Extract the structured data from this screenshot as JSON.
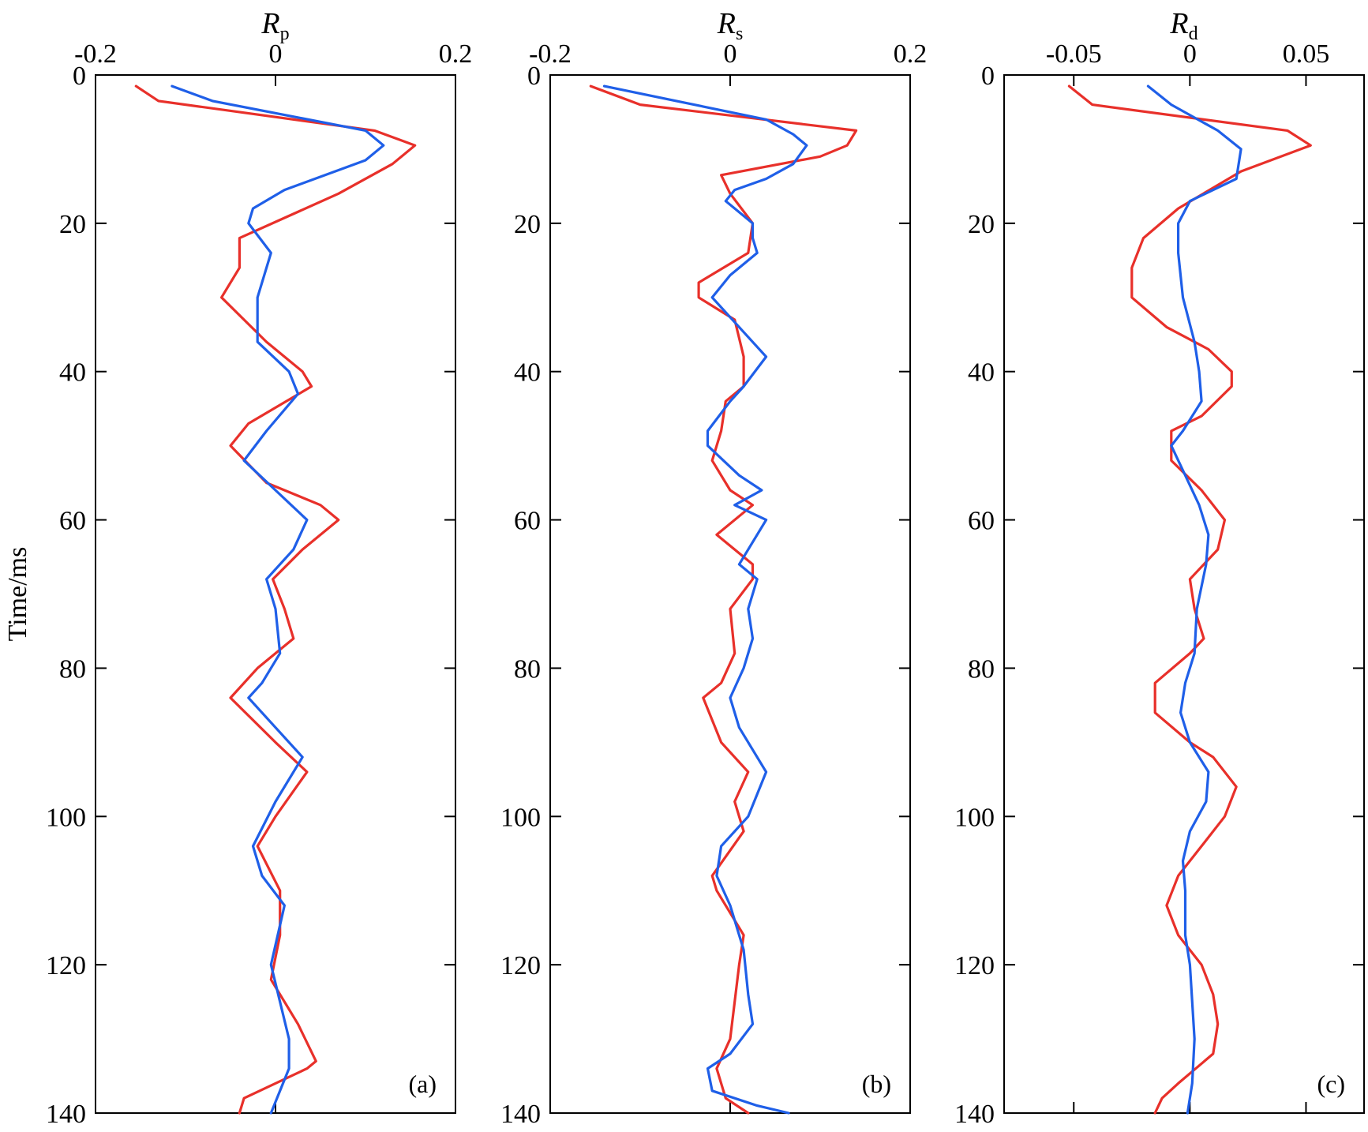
{
  "chart_data": [
    {
      "type": "line",
      "panel_label": "(a)",
      "title_main": "R",
      "title_sub": "p",
      "ylabel": "Time/ms",
      "xlim": [
        -0.2,
        0.2
      ],
      "x_ticks": [
        -0.2,
        0,
        0.2
      ],
      "x_tick_labels": [
        "-0.2",
        "0",
        "0.2"
      ],
      "ylim": [
        0,
        140
      ],
      "y_ticks": [
        0,
        20,
        40,
        60,
        80,
        100,
        120,
        140
      ],
      "y_tick_labels": [
        "0",
        "20",
        "40",
        "60",
        "80",
        "100",
        "120",
        "140"
      ],
      "series": [
        {
          "color": "#e8302a",
          "points": [
            [
              -0.155,
              1.5
            ],
            [
              -0.13,
              3.5
            ],
            [
              0.11,
              7.5
            ],
            [
              0.155,
              9.5
            ],
            [
              0.13,
              12
            ],
            [
              0.07,
              16
            ],
            [
              -0.04,
              22
            ],
            [
              -0.04,
              26
            ],
            [
              -0.06,
              30
            ],
            [
              -0.01,
              36
            ],
            [
              0.03,
              40
            ],
            [
              0.04,
              42
            ],
            [
              -0.03,
              47
            ],
            [
              -0.05,
              50
            ],
            [
              -0.01,
              55
            ],
            [
              0.05,
              58
            ],
            [
              0.07,
              60
            ],
            [
              0.03,
              64
            ],
            [
              -0.003,
              68
            ],
            [
              0.01,
              72
            ],
            [
              0.02,
              76
            ],
            [
              -0.02,
              80
            ],
            [
              -0.05,
              84
            ],
            [
              0.0,
              90
            ],
            [
              0.035,
              94
            ],
            [
              0.0,
              100
            ],
            [
              -0.02,
              104
            ],
            [
              0.005,
              110
            ],
            [
              0.005,
              116
            ],
            [
              -0.005,
              122
            ],
            [
              0.025,
              128
            ],
            [
              0.045,
              133
            ],
            [
              0.035,
              134
            ],
            [
              -0.035,
              138
            ],
            [
              -0.04,
              140
            ]
          ]
        },
        {
          "color": "#1f5fe8",
          "points": [
            [
              -0.115,
              1.5
            ],
            [
              -0.07,
              3.5
            ],
            [
              0.1,
              7.5
            ],
            [
              0.12,
              9.5
            ],
            [
              0.1,
              11.5
            ],
            [
              0.01,
              15.5
            ],
            [
              -0.025,
              18
            ],
            [
              -0.03,
              20
            ],
            [
              -0.005,
              24
            ],
            [
              -0.02,
              30
            ],
            [
              -0.02,
              36
            ],
            [
              0.015,
              40
            ],
            [
              0.025,
              43
            ],
            [
              -0.01,
              48
            ],
            [
              -0.035,
              52
            ],
            [
              0.0,
              56
            ],
            [
              0.035,
              60
            ],
            [
              0.02,
              64
            ],
            [
              -0.01,
              68
            ],
            [
              0.0,
              72
            ],
            [
              0.005,
              78
            ],
            [
              -0.015,
              82
            ],
            [
              -0.03,
              84
            ],
            [
              0.0,
              88
            ],
            [
              0.03,
              92
            ],
            [
              0.0,
              98
            ],
            [
              -0.025,
              104
            ],
            [
              -0.015,
              108
            ],
            [
              0.01,
              112
            ],
            [
              -0.005,
              120
            ],
            [
              0.015,
              130
            ],
            [
              0.015,
              134
            ],
            [
              -0.005,
              140
            ]
          ]
        }
      ]
    },
    {
      "type": "line",
      "panel_label": "(b)",
      "title_main": "R",
      "title_sub": "s",
      "xlim": [
        -0.2,
        0.2
      ],
      "x_ticks": [
        -0.2,
        0,
        0.2
      ],
      "x_tick_labels": [
        "-0.2",
        "0",
        "0.2"
      ],
      "ylim": [
        0,
        140
      ],
      "y_ticks": [
        0,
        20,
        40,
        60,
        80,
        100,
        120,
        140
      ],
      "y_tick_labels": [
        "0",
        "20",
        "40",
        "60",
        "80",
        "100",
        "120",
        "140"
      ],
      "series": [
        {
          "color": "#e8302a",
          "points": [
            [
              -0.155,
              1.5
            ],
            [
              -0.1,
              4
            ],
            [
              0.14,
              7.5
            ],
            [
              0.13,
              9.5
            ],
            [
              0.1,
              11
            ],
            [
              -0.01,
              13.5
            ],
            [
              0.0,
              16
            ],
            [
              0.025,
              20
            ],
            [
              0.02,
              24
            ],
            [
              -0.035,
              28
            ],
            [
              -0.035,
              30
            ],
            [
              0.005,
              33
            ],
            [
              0.015,
              38
            ],
            [
              0.015,
              42
            ],
            [
              -0.005,
              44
            ],
            [
              -0.01,
              48
            ],
            [
              -0.02,
              52
            ],
            [
              0.0,
              56
            ],
            [
              0.025,
              58
            ],
            [
              -0.015,
              62
            ],
            [
              0.025,
              66
            ],
            [
              0.025,
              68
            ],
            [
              0.0,
              72
            ],
            [
              0.005,
              78
            ],
            [
              -0.01,
              82
            ],
            [
              -0.03,
              84
            ],
            [
              -0.01,
              90
            ],
            [
              0.02,
              94
            ],
            [
              0.005,
              98
            ],
            [
              0.015,
              102
            ],
            [
              -0.02,
              108
            ],
            [
              -0.015,
              110
            ],
            [
              0.015,
              116
            ],
            [
              0.01,
              120
            ],
            [
              0.0,
              130
            ],
            [
              -0.015,
              134
            ],
            [
              -0.005,
              138
            ],
            [
              0.02,
              140
            ]
          ]
        },
        {
          "color": "#1f5fe8",
          "points": [
            [
              -0.14,
              1.5
            ],
            [
              0.04,
              6
            ],
            [
              0.07,
              8
            ],
            [
              0.085,
              9.5
            ],
            [
              0.07,
              12
            ],
            [
              0.04,
              14
            ],
            [
              0.005,
              15.5
            ],
            [
              -0.005,
              17
            ],
            [
              0.025,
              20
            ],
            [
              0.025,
              22
            ],
            [
              0.03,
              24
            ],
            [
              0.0,
              27
            ],
            [
              -0.02,
              30
            ],
            [
              0.01,
              34
            ],
            [
              0.04,
              38
            ],
            [
              0.015,
              42
            ],
            [
              0.0,
              44
            ],
            [
              -0.025,
              48
            ],
            [
              -0.025,
              50
            ],
            [
              0.01,
              54
            ],
            [
              0.035,
              56
            ],
            [
              0.005,
              58
            ],
            [
              0.04,
              60
            ],
            [
              0.01,
              66
            ],
            [
              0.03,
              68
            ],
            [
              0.02,
              72
            ],
            [
              0.025,
              76
            ],
            [
              0.015,
              80
            ],
            [
              0.0,
              84
            ],
            [
              0.01,
              88
            ],
            [
              0.04,
              94
            ],
            [
              0.02,
              100
            ],
            [
              -0.01,
              104
            ],
            [
              -0.015,
              108
            ],
            [
              0.0,
              112
            ],
            [
              0.015,
              118
            ],
            [
              0.02,
              124
            ],
            [
              0.025,
              128
            ],
            [
              0.0,
              132
            ],
            [
              -0.025,
              134
            ],
            [
              -0.02,
              137
            ],
            [
              0.03,
              139
            ],
            [
              0.065,
              140
            ]
          ]
        }
      ]
    },
    {
      "type": "line",
      "panel_label": "(c)",
      "title_main": "R",
      "title_sub": "d",
      "xlim": [
        -0.08,
        0.075
      ],
      "x_ticks": [
        -0.05,
        0,
        0.05
      ],
      "x_tick_labels": [
        "-0.05",
        "0",
        "0.05"
      ],
      "ylim": [
        0,
        140
      ],
      "y_ticks": [
        0,
        20,
        40,
        60,
        80,
        100,
        120,
        140
      ],
      "y_tick_labels": [
        "0",
        "20",
        "40",
        "60",
        "80",
        "100",
        "120",
        "140"
      ],
      "series": [
        {
          "color": "#e8302a",
          "points": [
            [
              -0.052,
              1.5
            ],
            [
              -0.042,
              4
            ],
            [
              0.042,
              7.5
            ],
            [
              0.052,
              9.5
            ],
            [
              0.022,
              13
            ],
            [
              -0.005,
              18
            ],
            [
              -0.02,
              22
            ],
            [
              -0.025,
              26
            ],
            [
              -0.025,
              30
            ],
            [
              -0.01,
              34
            ],
            [
              0.008,
              37
            ],
            [
              0.018,
              40
            ],
            [
              0.018,
              42
            ],
            [
              0.005,
              46
            ],
            [
              -0.008,
              48
            ],
            [
              -0.008,
              52
            ],
            [
              0.005,
              56
            ],
            [
              0.015,
              60
            ],
            [
              0.012,
              64
            ],
            [
              0.0,
              68
            ],
            [
              0.002,
              72
            ],
            [
              0.006,
              76
            ],
            [
              0.0,
              78
            ],
            [
              -0.015,
              82
            ],
            [
              -0.015,
              86
            ],
            [
              0.0,
              90
            ],
            [
              0.01,
              92
            ],
            [
              0.02,
              96
            ],
            [
              0.015,
              100
            ],
            [
              0.005,
              104
            ],
            [
              -0.005,
              108
            ],
            [
              -0.01,
              112
            ],
            [
              -0.005,
              116
            ],
            [
              0.005,
              120
            ],
            [
              0.01,
              124
            ],
            [
              0.012,
              128
            ],
            [
              0.01,
              132
            ],
            [
              -0.005,
              136
            ],
            [
              -0.012,
              138
            ],
            [
              -0.015,
              140
            ]
          ]
        },
        {
          "color": "#1f5fe8",
          "points": [
            [
              -0.018,
              1.5
            ],
            [
              -0.008,
              4
            ],
            [
              0.012,
              7.5
            ],
            [
              0.022,
              10
            ],
            [
              0.02,
              14
            ],
            [
              0.0,
              17
            ],
            [
              -0.005,
              20
            ],
            [
              -0.005,
              24
            ],
            [
              -0.003,
              30
            ],
            [
              0.002,
              36
            ],
            [
              0.004,
              40
            ],
            [
              0.005,
              44
            ],
            [
              -0.003,
              48
            ],
            [
              -0.008,
              50
            ],
            [
              -0.002,
              54
            ],
            [
              0.004,
              58
            ],
            [
              0.008,
              62
            ],
            [
              0.007,
              66
            ],
            [
              0.003,
              72
            ],
            [
              0.002,
              78
            ],
            [
              -0.002,
              82
            ],
            [
              -0.004,
              86
            ],
            [
              0.0,
              90
            ],
            [
              0.008,
              94
            ],
            [
              0.007,
              98
            ],
            [
              0.0,
              102
            ],
            [
              -0.003,
              106
            ],
            [
              -0.002,
              110
            ],
            [
              -0.002,
              116
            ],
            [
              0.0,
              120
            ],
            [
              0.002,
              130
            ],
            [
              0.001,
              136
            ],
            [
              -0.001,
              140
            ]
          ]
        }
      ]
    }
  ]
}
